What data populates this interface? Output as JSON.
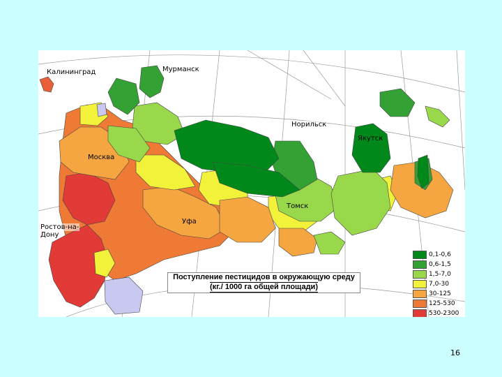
{
  "map": {
    "title_line1": "Поступление пестицидов в окружающую среду",
    "title_line2": "(кг./ 1000 га общей площади)",
    "cities": {
      "kaliningrad": "Калининград",
      "murmansk": "Мурманск",
      "norilsk": "Норильск",
      "yakutsk": "Якутск",
      "moscow": "Москва",
      "tomsk": "Томск",
      "ufa": "Уфа",
      "rostov_line1": "Ростов-на-",
      "rostov_line2": "Дону"
    },
    "legend": [
      {
        "label": "0,1-0,6",
        "color": "#00891a"
      },
      {
        "label": "0,6-1,5",
        "color": "#33a133"
      },
      {
        "label": "1,5-7,0",
        "color": "#99d84a"
      },
      {
        "label": "7,0-30",
        "color": "#f2f23a"
      },
      {
        "label": "30-125",
        "color": "#f5a640"
      },
      {
        "label": "125-530",
        "color": "#ef7a36"
      },
      {
        "label": "530-2300",
        "color": "#e23a36"
      }
    ]
  },
  "page": {
    "number": "16"
  }
}
